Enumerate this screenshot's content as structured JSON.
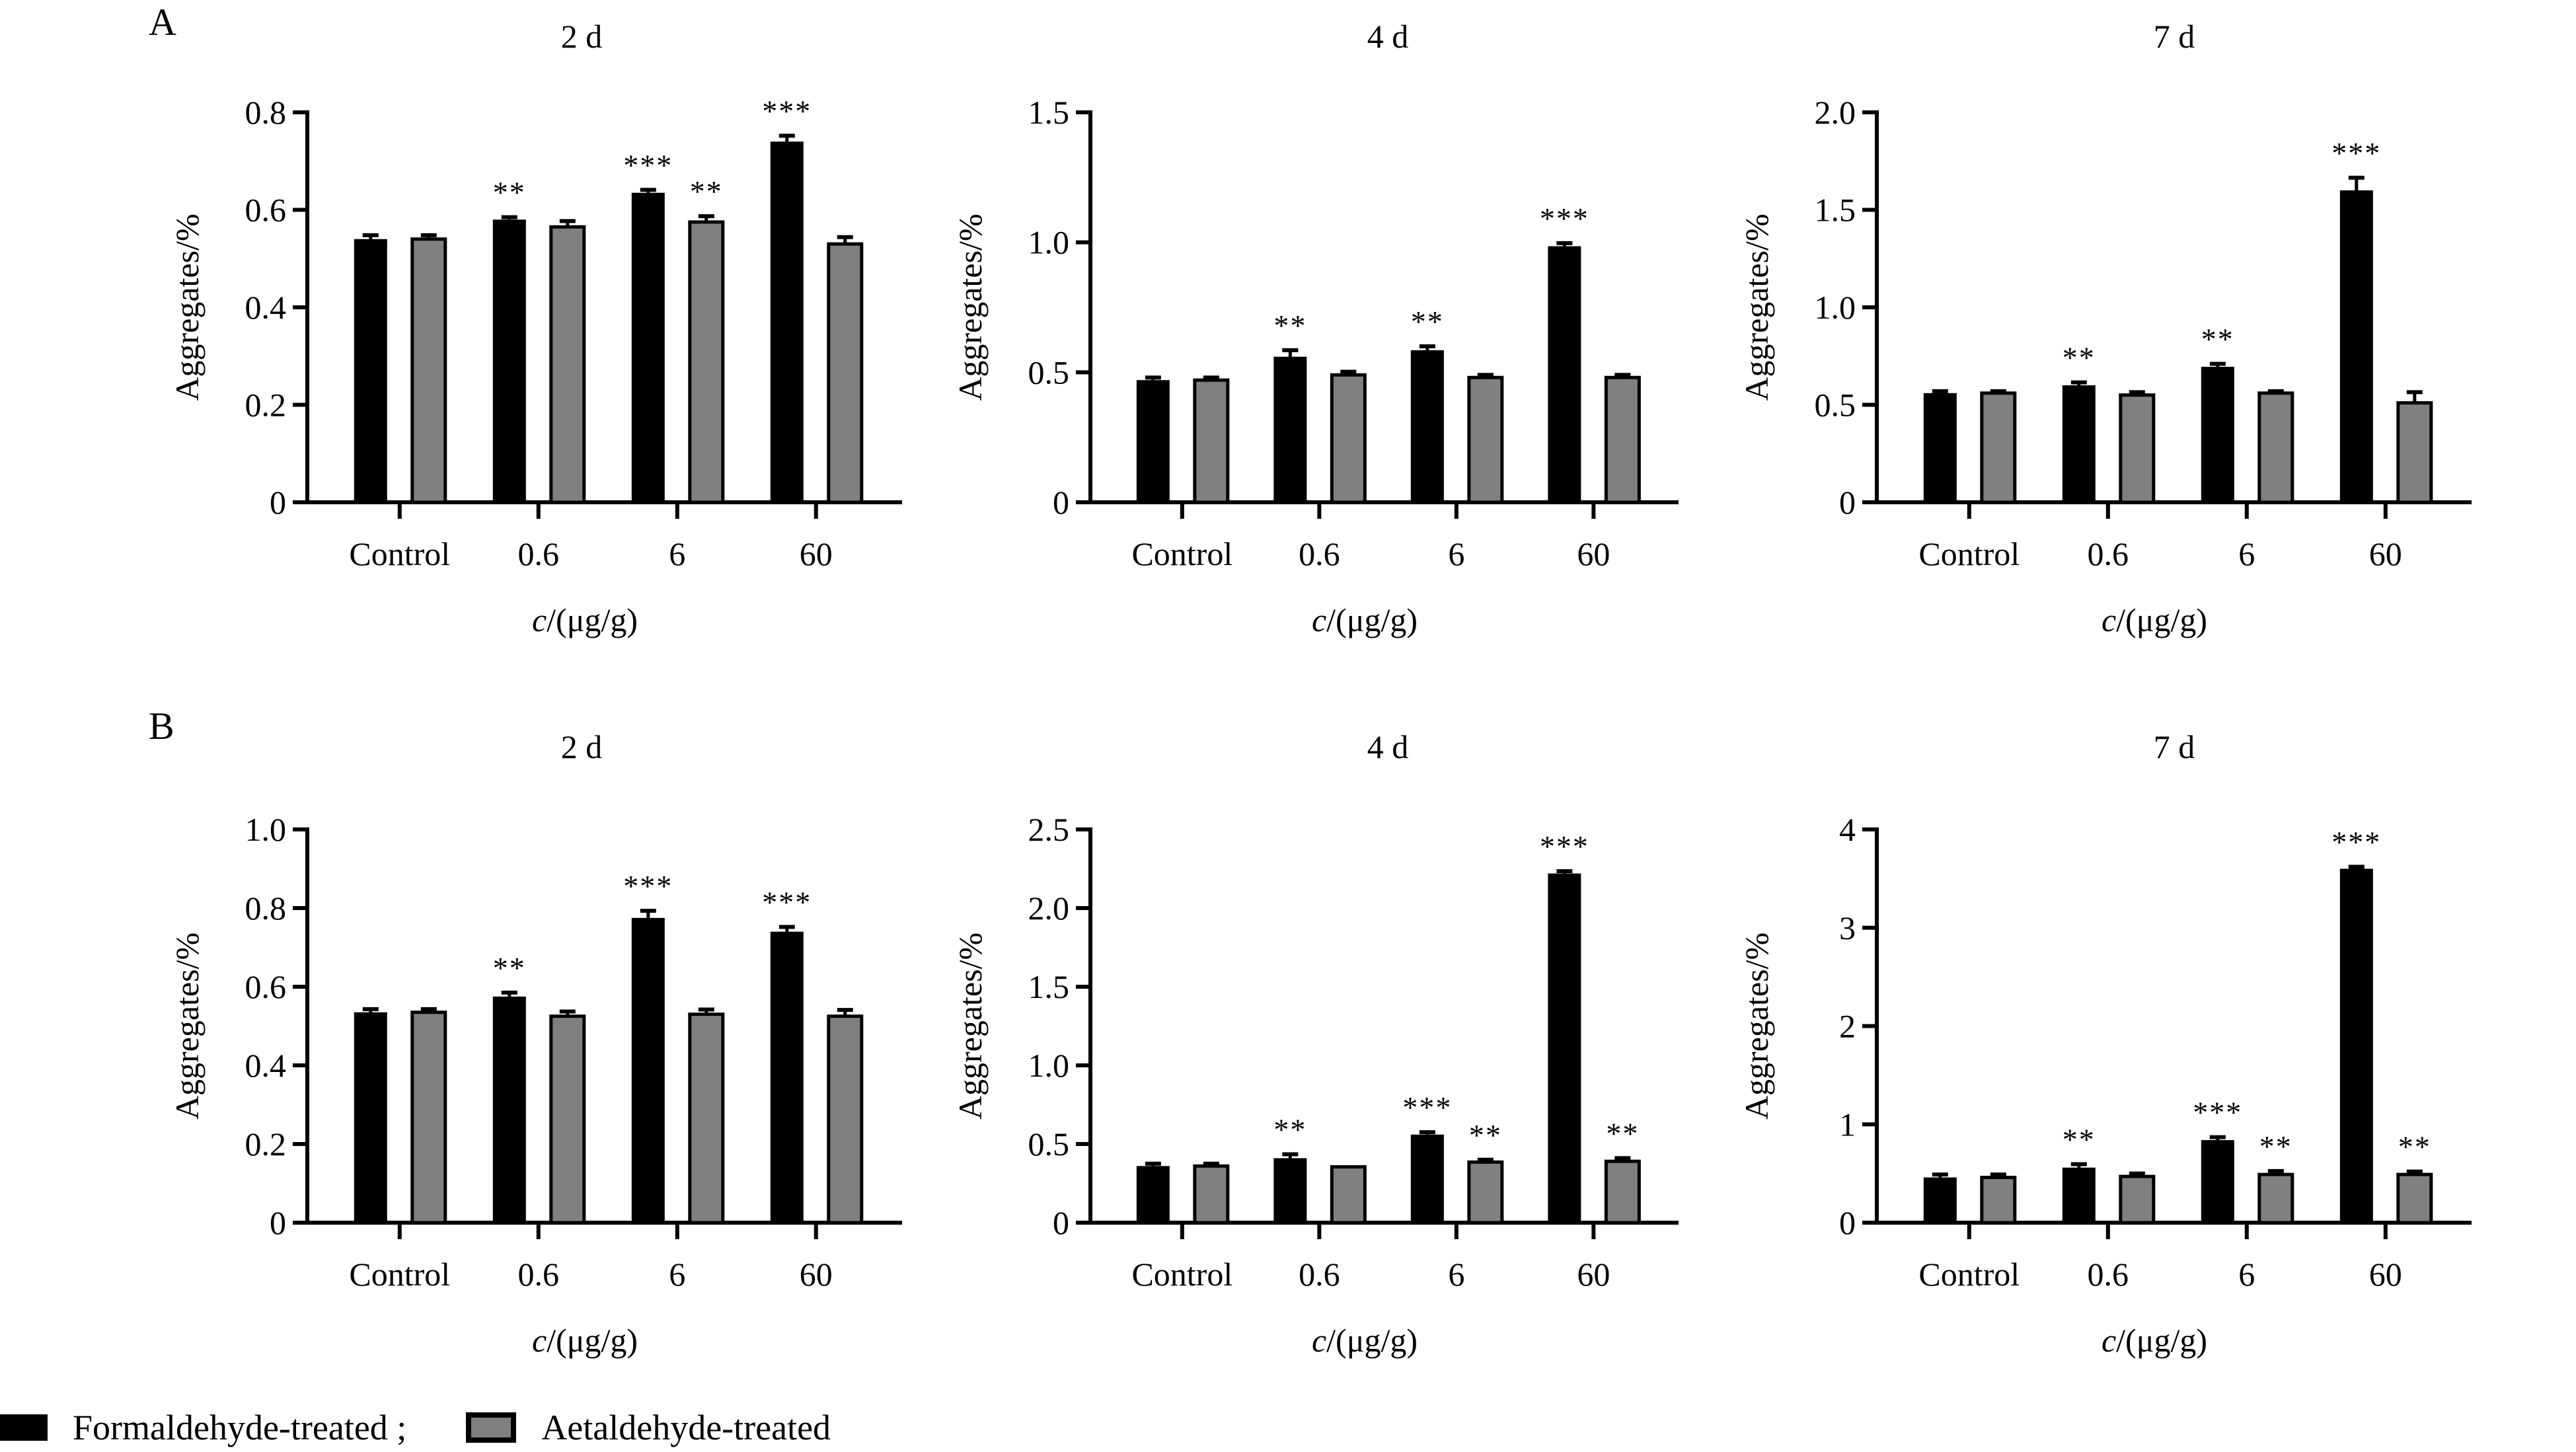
{
  "panel_letters": [
    "A",
    "B"
  ],
  "legend": {
    "items": [
      {
        "label": "Formaldehyde-treated ;",
        "color": "#000000"
      },
      {
        "label": "Aetaldehyde-treated",
        "color": "#808080"
      }
    ]
  },
  "chart_data": [
    {
      "type": "bar",
      "panel": "A",
      "title": "2 d",
      "xlabel": "c/(μg/g)",
      "ylabel": "Aggregates/%",
      "categories": [
        "Control",
        "0.6",
        "6",
        "60"
      ],
      "ylim": [
        0,
        0.8
      ],
      "yticks": [
        0,
        0.2,
        0.4,
        0.6,
        0.8
      ],
      "ytick_labels": [
        "0",
        "0.2",
        "0.4",
        "0.6",
        "0.8"
      ],
      "grid": false,
      "series": [
        {
          "name": "Formaldehyde-treated",
          "color": "#000000",
          "values": [
            0.54,
            0.58,
            0.635,
            0.74
          ],
          "errors": [
            0.008,
            0.005,
            0.006,
            0.012
          ],
          "significance": [
            "",
            "**",
            "***",
            "***"
          ]
        },
        {
          "name": "Aetaldehyde-treated",
          "color": "#808080",
          "values": [
            0.54,
            0.565,
            0.575,
            0.53
          ],
          "errors": [
            0.008,
            0.012,
            0.012,
            0.014
          ],
          "significance": [
            "",
            "",
            "**",
            ""
          ]
        }
      ]
    },
    {
      "type": "bar",
      "panel": "A",
      "title": "4 d",
      "xlabel": "c/(μg/g)",
      "ylabel": "Aggregates/%",
      "categories": [
        "Control",
        "0.6",
        "6",
        "60"
      ],
      "ylim": [
        0,
        1.5
      ],
      "yticks": [
        0,
        0.5,
        1.0,
        1.5
      ],
      "ytick_labels": [
        "0",
        "0.5",
        "1.0",
        "1.5"
      ],
      "grid": false,
      "series": [
        {
          "name": "Formaldehyde-treated",
          "color": "#000000",
          "values": [
            0.47,
            0.56,
            0.585,
            0.985
          ],
          "errors": [
            0.01,
            0.025,
            0.015,
            0.012
          ],
          "significance": [
            "",
            "**",
            "**",
            "***"
          ]
        },
        {
          "name": "Aetaldehyde-treated",
          "color": "#808080",
          "values": [
            0.47,
            0.49,
            0.48,
            0.48
          ],
          "errors": [
            0.01,
            0.012,
            0.01,
            0.01
          ],
          "significance": [
            "",
            "",
            "",
            ""
          ]
        }
      ]
    },
    {
      "type": "bar",
      "panel": "A",
      "title": "7 d",
      "xlabel": "c/(μg/g)",
      "ylabel": "Aggregates/%",
      "categories": [
        "Control",
        "0.6",
        "6",
        "60"
      ],
      "ylim": [
        0,
        2.0
      ],
      "yticks": [
        0,
        0.5,
        1.0,
        1.5,
        2.0
      ],
      "ytick_labels": [
        "0",
        "0.5",
        "1.0",
        "1.5",
        "2.0"
      ],
      "grid": false,
      "series": [
        {
          "name": "Formaldehyde-treated",
          "color": "#000000",
          "values": [
            0.56,
            0.6,
            0.695,
            1.6
          ],
          "errors": [
            0.01,
            0.015,
            0.015,
            0.065
          ],
          "significance": [
            "",
            "**",
            "**",
            "***"
          ]
        },
        {
          "name": "Aetaldehyde-treated",
          "color": "#808080",
          "values": [
            0.56,
            0.55,
            0.56,
            0.51
          ],
          "errors": [
            0.01,
            0.015,
            0.01,
            0.055
          ],
          "significance": [
            "",
            "",
            "",
            ""
          ]
        }
      ]
    },
    {
      "type": "bar",
      "panel": "B",
      "title": "2 d",
      "xlabel": "c/(μg/g)",
      "ylabel": "Aggregates/%",
      "categories": [
        "Control",
        "0.6",
        "6",
        "60"
      ],
      "ylim": [
        0,
        1.0
      ],
      "yticks": [
        0,
        0.2,
        0.4,
        0.6,
        0.8,
        1.0
      ],
      "ytick_labels": [
        "0",
        "0.2",
        "0.4",
        "0.6",
        "0.8",
        "1.0"
      ],
      "grid": false,
      "series": [
        {
          "name": "Formaldehyde-treated",
          "color": "#000000",
          "values": [
            0.535,
            0.575,
            0.775,
            0.74
          ],
          "errors": [
            0.008,
            0.01,
            0.018,
            0.012
          ],
          "significance": [
            "",
            "**",
            "***",
            "***"
          ]
        },
        {
          "name": "Aetaldehyde-treated",
          "color": "#808080",
          "values": [
            0.535,
            0.525,
            0.53,
            0.525
          ],
          "errors": [
            0.008,
            0.012,
            0.012,
            0.016
          ],
          "significance": [
            "",
            "",
            "",
            ""
          ]
        }
      ]
    },
    {
      "type": "bar",
      "panel": "B",
      "title": "4 d",
      "xlabel": "c/(μg/g)",
      "ylabel": "Aggregates/%",
      "categories": [
        "Control",
        "0.6",
        "6",
        "60"
      ],
      "ylim": [
        0,
        2.5
      ],
      "yticks": [
        0,
        0.5,
        1.0,
        1.5,
        2.0,
        2.5
      ],
      "ytick_labels": [
        "0",
        "0.5",
        "1.0",
        "1.5",
        "2.0",
        "2.5"
      ],
      "grid": false,
      "series": [
        {
          "name": "Formaldehyde-treated",
          "color": "#000000",
          "values": [
            0.36,
            0.41,
            0.56,
            2.22
          ],
          "errors": [
            0.015,
            0.025,
            0.015,
            0.015
          ],
          "significance": [
            "",
            "**",
            "***",
            "***"
          ]
        },
        {
          "name": "Aetaldehyde-treated",
          "color": "#808080",
          "values": [
            0.36,
            0.355,
            0.385,
            0.39
          ],
          "errors": [
            0.015,
            0.0,
            0.015,
            0.02
          ],
          "significance": [
            "",
            "",
            "**",
            "**"
          ]
        }
      ]
    },
    {
      "type": "bar",
      "panel": "B",
      "title": "7 d",
      "xlabel": "c/(μg/g)",
      "ylabel": "Aggregates/%",
      "categories": [
        "Control",
        "0.6",
        "6",
        "60"
      ],
      "ylim": [
        0,
        4
      ],
      "yticks": [
        0,
        1,
        2,
        3,
        4
      ],
      "ytick_labels": [
        "0",
        "1",
        "2",
        "3",
        "4"
      ],
      "grid": false,
      "series": [
        {
          "name": "Formaldehyde-treated",
          "color": "#000000",
          "values": [
            0.46,
            0.56,
            0.84,
            3.6
          ],
          "errors": [
            0.03,
            0.035,
            0.03,
            0.02
          ],
          "significance": [
            "",
            "**",
            "***",
            "***"
          ]
        },
        {
          "name": "Aetaldehyde-treated",
          "color": "#808080",
          "values": [
            0.46,
            0.47,
            0.49,
            0.49
          ],
          "errors": [
            0.03,
            0.03,
            0.035,
            0.03
          ],
          "significance": [
            "",
            "",
            "**",
            "**"
          ]
        }
      ]
    }
  ]
}
